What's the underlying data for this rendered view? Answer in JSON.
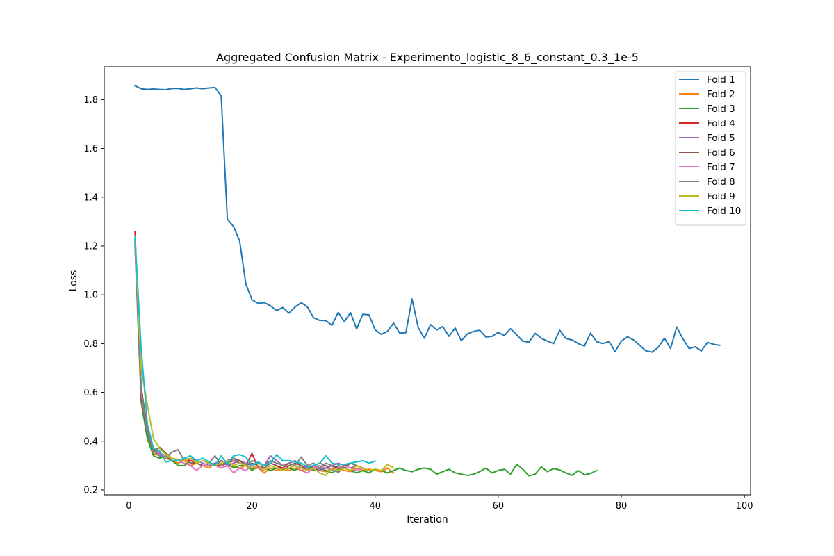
{
  "chart_data": {
    "type": "line",
    "title": "Aggregated Confusion Matrix - Experimento_logistic_8_6_constant_0.3_1e-5",
    "xlabel": "Iteration",
    "ylabel": "Loss",
    "xlim": [
      -4,
      101
    ],
    "ylim": [
      0.18,
      1.935
    ],
    "xticks": [
      0,
      20,
      40,
      60,
      80,
      100
    ],
    "yticks": [
      0.2,
      0.4,
      0.6,
      0.8,
      1.0,
      1.2,
      1.4,
      1.6,
      1.8
    ],
    "ytick_labels": [
      "0.2",
      "0.4",
      "0.6",
      "0.8",
      "1.0",
      "1.2",
      "1.4",
      "1.6",
      "1.8"
    ],
    "grid": false,
    "legend_position": "top-right",
    "series": [
      {
        "name": "Fold 1",
        "color": "#1f77b4",
        "values": [
          1.857,
          1.845,
          1.842,
          1.844,
          1.842,
          1.841,
          1.846,
          1.846,
          1.842,
          1.845,
          1.848,
          1.845,
          1.848,
          1.85,
          1.815,
          1.31,
          1.28,
          1.22,
          1.045,
          0.98,
          0.965,
          0.968,
          0.955,
          0.935,
          0.948,
          0.925,
          0.95,
          0.968,
          0.95,
          0.906,
          0.895,
          0.894,
          0.875,
          0.928,
          0.89,
          0.927,
          0.86,
          0.92,
          0.918,
          0.857,
          0.838,
          0.85,
          0.884,
          0.843,
          0.845,
          0.983,
          0.866,
          0.822,
          0.878,
          0.856,
          0.87,
          0.83,
          0.864,
          0.812,
          0.84,
          0.85,
          0.855,
          0.827,
          0.83,
          0.846,
          0.833,
          0.861,
          0.836,
          0.81,
          0.806,
          0.842,
          0.822,
          0.81,
          0.8,
          0.855,
          0.821,
          0.815,
          0.8,
          0.79,
          0.843,
          0.808,
          0.8,
          0.808,
          0.768,
          0.81,
          0.828,
          0.815,
          0.793,
          0.77,
          0.765,
          0.785,
          0.822,
          0.78,
          0.868,
          0.82,
          0.78,
          0.787,
          0.77,
          0.805,
          0.797,
          0.793
        ]
      },
      {
        "name": "Fold 2",
        "color": "#ff7f0e",
        "values": [
          1.23,
          0.6,
          0.43,
          0.35,
          0.34,
          0.33,
          0.32,
          0.31,
          0.32,
          0.3,
          0.31,
          0.3,
          0.29,
          0.31,
          0.29,
          0.3,
          0.295,
          0.29,
          0.3,
          0.285,
          0.29,
          0.27,
          0.29,
          0.28,
          0.285,
          0.28,
          0.29,
          0.28,
          0.29,
          0.285,
          0.28,
          0.275,
          0.285,
          0.29,
          0.28,
          0.275,
          0.29,
          0.28,
          0.285,
          0.28,
          0.275,
          0.29,
          0.27
        ]
      },
      {
        "name": "Fold 3",
        "color": "#2ca02c",
        "values": [
          1.2,
          0.56,
          0.41,
          0.34,
          0.33,
          0.34,
          0.32,
          0.3,
          0.3,
          0.32,
          0.31,
          0.3,
          0.31,
          0.305,
          0.3,
          0.31,
          0.29,
          0.3,
          0.3,
          0.28,
          0.3,
          0.29,
          0.28,
          0.29,
          0.28,
          0.29,
          0.28,
          0.3,
          0.29,
          0.28,
          0.29,
          0.28,
          0.27,
          0.285,
          0.29,
          0.28,
          0.27,
          0.28,
          0.27,
          0.285,
          0.28,
          0.27,
          0.28,
          0.29,
          0.28,
          0.275,
          0.285,
          0.29,
          0.285,
          0.265,
          0.275,
          0.285,
          0.27,
          0.265,
          0.26,
          0.265,
          0.275,
          0.29,
          0.27,
          0.28,
          0.285,
          0.265,
          0.305,
          0.285,
          0.258,
          0.265,
          0.295,
          0.275,
          0.288,
          0.282,
          0.27,
          0.26,
          0.28,
          0.262,
          0.268,
          0.28
        ]
      },
      {
        "name": "Fold 4",
        "color": "#d62728",
        "values": [
          1.258,
          0.62,
          0.45,
          0.36,
          0.35,
          0.34,
          0.33,
          0.32,
          0.33,
          0.32,
          0.31,
          0.3,
          0.31,
          0.305,
          0.3,
          0.31,
          0.32,
          0.31,
          0.3,
          0.35,
          0.29,
          0.3,
          0.31,
          0.3,
          0.29,
          0.31,
          0.3,
          0.29,
          0.3,
          0.29,
          0.28,
          0.29,
          0.3,
          0.29,
          0.3,
          0.31,
          0.3,
          0.29
        ]
      },
      {
        "name": "Fold 5",
        "color": "#9467bd",
        "values": [
          1.21,
          0.61,
          0.44,
          0.37,
          0.35,
          0.34,
          0.33,
          0.32,
          0.32,
          0.33,
          0.32,
          0.31,
          0.3,
          0.31,
          0.32,
          0.3,
          0.31,
          0.32,
          0.31,
          0.3,
          0.31,
          0.3,
          0.34,
          0.32,
          0.3,
          0.31,
          0.32,
          0.3,
          0.29,
          0.3,
          0.28,
          0.29,
          0.3,
          0.31,
          0.3,
          0.29,
          0.3,
          0.29
        ]
      },
      {
        "name": "Fold 6",
        "color": "#8c564b",
        "values": [
          1.22,
          0.58,
          0.43,
          0.36,
          0.375,
          0.35,
          0.33,
          0.32,
          0.33,
          0.31,
          0.31,
          0.3,
          0.31,
          0.3,
          0.32,
          0.31,
          0.33,
          0.32,
          0.3,
          0.31,
          0.3,
          0.29,
          0.31,
          0.3,
          0.28,
          0.3,
          0.31,
          0.3,
          0.28,
          0.3,
          0.31,
          0.3,
          0.28,
          0.3,
          0.29,
          0.31,
          0.3,
          0.29,
          0.28
        ]
      },
      {
        "name": "Fold 7",
        "color": "#e377c2",
        "values": [
          1.215,
          0.6,
          0.44,
          0.36,
          0.345,
          0.34,
          0.33,
          0.32,
          0.31,
          0.3,
          0.28,
          0.3,
          0.31,
          0.3,
          0.29,
          0.3,
          0.27,
          0.29,
          0.28,
          0.3,
          0.29,
          0.28,
          0.3,
          0.29,
          0.28,
          0.29,
          0.3,
          0.28,
          0.27,
          0.29,
          0.3,
          0.29,
          0.28,
          0.29,
          0.3,
          0.29,
          0.28,
          0.29
        ]
      },
      {
        "name": "Fold 8",
        "color": "#7f7f7f",
        "values": [
          1.225,
          0.61,
          0.44,
          0.36,
          0.34,
          0.335,
          0.355,
          0.365,
          0.32,
          0.33,
          0.31,
          0.32,
          0.31,
          0.34,
          0.3,
          0.32,
          0.33,
          0.31,
          0.3,
          0.32,
          0.31,
          0.3,
          0.32,
          0.31,
          0.3,
          0.31,
          0.3,
          0.335,
          0.3,
          0.31,
          0.29,
          0.31,
          0.3,
          0.27,
          0.3,
          0.31,
          0.3,
          0.29
        ]
      },
      {
        "name": "Fold 9",
        "color": "#bcbd22",
        "values": [
          1.24,
          0.7,
          0.55,
          0.41,
          0.37,
          0.345,
          0.33,
          0.325,
          0.32,
          0.33,
          0.31,
          0.32,
          0.31,
          0.3,
          0.31,
          0.32,
          0.3,
          0.31,
          0.3,
          0.29,
          0.3,
          0.28,
          0.3,
          0.29,
          0.28,
          0.29,
          0.3,
          0.29,
          0.28,
          0.29,
          0.27,
          0.26,
          0.29,
          0.28,
          0.29,
          0.28,
          0.3,
          0.29,
          0.28,
          0.285,
          0.28,
          0.305,
          0.29
        ]
      },
      {
        "name": "Fold 10",
        "color": "#17becf",
        "values": [
          1.235,
          0.78,
          0.47,
          0.37,
          0.36,
          0.315,
          0.32,
          0.32,
          0.33,
          0.34,
          0.32,
          0.33,
          0.315,
          0.3,
          0.34,
          0.305,
          0.34,
          0.345,
          0.335,
          0.3,
          0.315,
          0.3,
          0.31,
          0.345,
          0.32,
          0.32,
          0.315,
          0.31,
          0.295,
          0.3,
          0.31,
          0.34,
          0.31,
          0.305,
          0.305,
          0.31,
          0.315,
          0.32,
          0.31,
          0.318
        ]
      }
    ]
  }
}
